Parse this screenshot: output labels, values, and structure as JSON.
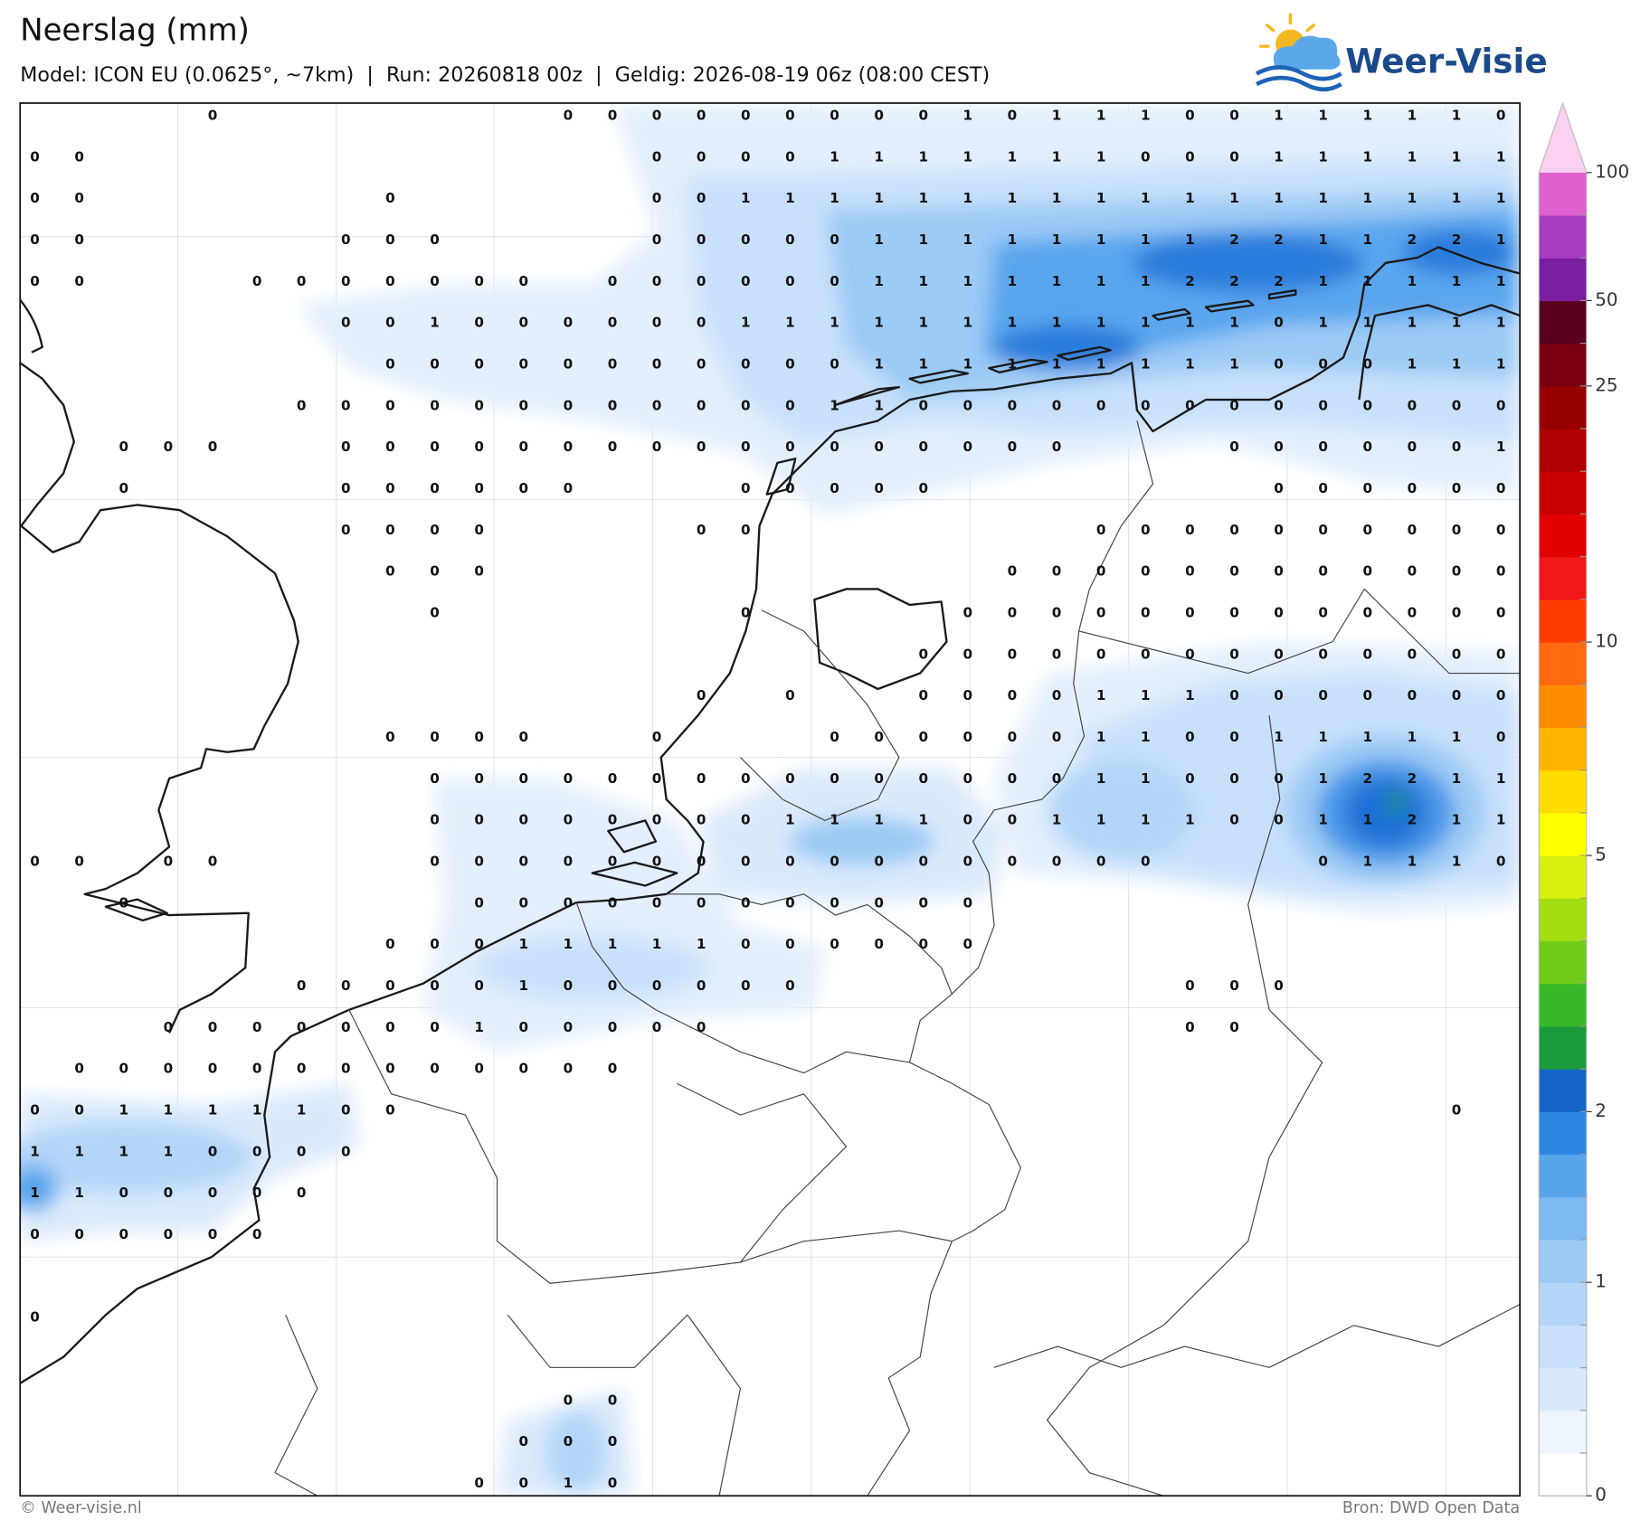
{
  "header": {
    "title": "Neerslag (mm)",
    "subtitle": "Model: ICON EU (0.0625°, ~7km)  |  Run: 20260818 00z  |  Geldig: 2026-08-19 06z (08:00 CEST)"
  },
  "logo": {
    "text": "Weer-Visie"
  },
  "map": {
    "grid": [
      [
        null,
        null,
        null,
        null,
        0,
        null,
        null,
        null,
        null,
        null,
        null,
        null,
        0,
        0,
        0,
        0,
        0,
        0,
        0,
        0,
        0,
        1,
        0,
        1,
        1,
        1,
        0,
        0,
        1,
        1,
        1,
        1,
        1,
        0
      ],
      [
        0,
        0,
        null,
        null,
        null,
        null,
        null,
        null,
        null,
        null,
        null,
        null,
        null,
        null,
        0,
        0,
        0,
        0,
        1,
        1,
        1,
        1,
        1,
        1,
        1,
        0,
        0,
        0,
        1,
        1,
        1,
        1,
        1,
        1
      ],
      [
        0,
        0,
        null,
        null,
        null,
        null,
        null,
        null,
        0,
        null,
        null,
        null,
        null,
        null,
        0,
        0,
        1,
        1,
        1,
        1,
        1,
        1,
        1,
        1,
        1,
        1,
        1,
        1,
        1,
        1,
        1,
        1,
        1,
        1
      ],
      [
        0,
        0,
        null,
        null,
        null,
        null,
        null,
        0,
        0,
        0,
        null,
        null,
        null,
        null,
        0,
        0,
        0,
        0,
        0,
        1,
        1,
        1,
        1,
        1,
        1,
        1,
        1,
        2,
        2,
        1,
        1,
        2,
        2,
        1
      ],
      [
        0,
        0,
        null,
        null,
        null,
        0,
        0,
        0,
        0,
        0,
        0,
        0,
        null,
        0,
        0,
        0,
        0,
        0,
        0,
        1,
        1,
        1,
        1,
        1,
        1,
        1,
        2,
        2,
        2,
        1,
        1,
        1,
        1,
        1
      ],
      [
        null,
        null,
        null,
        null,
        null,
        null,
        null,
        0,
        0,
        1,
        0,
        0,
        0,
        0,
        0,
        0,
        1,
        1,
        1,
        1,
        1,
        1,
        1,
        1,
        1,
        1,
        1,
        1,
        0,
        1,
        1,
        1,
        1,
        1
      ],
      [
        null,
        null,
        null,
        null,
        null,
        null,
        null,
        null,
        0,
        0,
        0,
        0,
        0,
        0,
        0,
        0,
        0,
        0,
        0,
        1,
        1,
        1,
        1,
        1,
        1,
        1,
        1,
        1,
        0,
        0,
        0,
        1,
        1,
        1
      ],
      [
        null,
        null,
        null,
        null,
        null,
        null,
        0,
        0,
        0,
        0,
        0,
        0,
        0,
        0,
        0,
        0,
        0,
        0,
        1,
        1,
        0,
        0,
        0,
        0,
        0,
        0,
        0,
        0,
        0,
        0,
        0,
        0,
        0,
        0
      ],
      [
        null,
        null,
        0,
        0,
        0,
        null,
        null,
        0,
        0,
        0,
        0,
        0,
        0,
        0,
        0,
        0,
        0,
        0,
        0,
        0,
        0,
        0,
        0,
        0,
        null,
        null,
        null,
        0,
        0,
        0,
        0,
        0,
        0,
        1
      ],
      [
        null,
        null,
        0,
        null,
        null,
        null,
        null,
        0,
        0,
        0,
        0,
        0,
        0,
        null,
        null,
        null,
        0,
        0,
        0,
        0,
        0,
        null,
        null,
        null,
        null,
        null,
        null,
        null,
        0,
        0,
        0,
        0,
        0,
        0
      ],
      [
        null,
        null,
        null,
        null,
        null,
        null,
        null,
        0,
        0,
        0,
        0,
        null,
        null,
        null,
        null,
        0,
        0,
        null,
        null,
        null,
        null,
        null,
        null,
        null,
        0,
        0,
        0,
        0,
        0,
        0,
        0,
        0,
        0,
        0
      ],
      [
        null,
        null,
        null,
        null,
        null,
        null,
        null,
        null,
        0,
        0,
        0,
        null,
        null,
        null,
        null,
        null,
        null,
        null,
        null,
        null,
        null,
        null,
        0,
        0,
        0,
        0,
        0,
        0,
        0,
        0,
        0,
        0,
        0,
        0
      ],
      [
        null,
        null,
        null,
        null,
        null,
        null,
        null,
        null,
        null,
        0,
        null,
        null,
        null,
        null,
        null,
        null,
        0,
        null,
        null,
        null,
        null,
        0,
        0,
        0,
        0,
        0,
        0,
        0,
        0,
        0,
        0,
        0,
        0,
        0
      ],
      [
        null,
        null,
        null,
        null,
        null,
        null,
        null,
        null,
        null,
        null,
        null,
        null,
        null,
        null,
        null,
        null,
        null,
        null,
        null,
        null,
        0,
        0,
        0,
        0,
        0,
        0,
        0,
        0,
        0,
        0,
        0,
        0,
        0,
        0
      ],
      [
        null,
        null,
        null,
        null,
        null,
        null,
        null,
        null,
        null,
        null,
        null,
        null,
        null,
        null,
        null,
        0,
        null,
        0,
        null,
        null,
        0,
        0,
        0,
        0,
        1,
        1,
        1,
        0,
        0,
        0,
        0,
        0,
        0,
        0
      ],
      [
        null,
        null,
        null,
        null,
        null,
        null,
        null,
        null,
        0,
        0,
        0,
        0,
        null,
        null,
        0,
        null,
        null,
        null,
        0,
        0,
        0,
        0,
        0,
        0,
        1,
        1,
        0,
        0,
        1,
        1,
        1,
        1,
        1,
        0
      ],
      [
        null,
        null,
        null,
        null,
        null,
        null,
        null,
        null,
        null,
        0,
        0,
        0,
        0,
        0,
        0,
        0,
        0,
        0,
        0,
        0,
        0,
        0,
        0,
        0,
        1,
        1,
        0,
        0,
        0,
        1,
        2,
        2,
        1,
        1
      ],
      [
        null,
        null,
        null,
        null,
        null,
        null,
        null,
        null,
        null,
        0,
        0,
        0,
        0,
        0,
        0,
        0,
        0,
        1,
        1,
        1,
        1,
        0,
        0,
        1,
        1,
        1,
        1,
        0,
        0,
        1,
        1,
        2,
        1,
        1
      ],
      [
        0,
        0,
        null,
        0,
        0,
        null,
        null,
        null,
        null,
        0,
        0,
        0,
        0,
        0,
        0,
        0,
        0,
        0,
        0,
        0,
        0,
        0,
        0,
        0,
        0,
        0,
        null,
        null,
        null,
        0,
        1,
        1,
        1,
        0
      ],
      [
        null,
        null,
        0,
        null,
        null,
        null,
        null,
        null,
        null,
        null,
        0,
        0,
        0,
        0,
        0,
        0,
        0,
        0,
        0,
        0,
        0,
        0,
        null,
        null,
        null,
        null,
        null,
        null,
        null,
        null,
        null,
        null,
        null,
        null
      ],
      [
        null,
        null,
        null,
        null,
        null,
        null,
        null,
        null,
        0,
        0,
        0,
        1,
        1,
        1,
        1,
        1,
        0,
        0,
        0,
        0,
        0,
        0,
        null,
        null,
        null,
        null,
        null,
        null,
        null,
        null,
        null,
        null,
        null,
        null
      ],
      [
        null,
        null,
        null,
        null,
        null,
        null,
        0,
        0,
        0,
        0,
        0,
        1,
        0,
        0,
        0,
        0,
        0,
        0,
        null,
        null,
        null,
        null,
        null,
        null,
        null,
        null,
        0,
        0,
        0,
        null,
        null,
        null,
        null,
        null
      ],
      [
        null,
        null,
        null,
        0,
        0,
        0,
        0,
        0,
        0,
        0,
        1,
        0,
        0,
        0,
        0,
        0,
        null,
        null,
        null,
        null,
        null,
        null,
        null,
        null,
        null,
        null,
        0,
        0,
        null,
        null,
        null,
        null,
        null,
        null
      ],
      [
        null,
        0,
        0,
        0,
        0,
        0,
        0,
        0,
        0,
        0,
        0,
        0,
        0,
        0,
        null,
        null,
        null,
        null,
        null,
        null,
        null,
        null,
        null,
        null,
        null,
        null,
        null,
        null,
        null,
        null,
        null,
        null,
        null,
        null
      ],
      [
        0,
        0,
        1,
        1,
        1,
        1,
        1,
        0,
        0,
        null,
        null,
        null,
        null,
        null,
        null,
        null,
        null,
        null,
        null,
        null,
        null,
        null,
        null,
        null,
        null,
        null,
        null,
        null,
        null,
        null,
        null,
        null,
        0,
        null
      ],
      [
        1,
        1,
        1,
        1,
        0,
        0,
        0,
        0,
        null,
        null,
        null,
        null,
        null,
        null,
        null,
        null,
        null,
        null,
        null,
        null,
        null,
        null,
        null,
        null,
        null,
        null,
        null,
        null,
        null,
        null,
        null,
        null,
        null,
        null
      ],
      [
        1,
        1,
        0,
        0,
        0,
        0,
        0,
        null,
        null,
        null,
        null,
        null,
        null,
        null,
        null,
        null,
        null,
        null,
        null,
        null,
        null,
        null,
        null,
        null,
        null,
        null,
        null,
        null,
        null,
        null,
        null,
        null,
        null,
        null
      ],
      [
        0,
        0,
        0,
        0,
        0,
        0,
        null,
        null,
        null,
        null,
        null,
        null,
        null,
        null,
        null,
        null,
        null,
        null,
        null,
        null,
        null,
        null,
        null,
        null,
        null,
        null,
        null,
        null,
        null,
        null,
        null,
        null,
        null,
        null
      ],
      [
        null,
        null,
        null,
        null,
        null,
        null,
        null,
        null,
        null,
        null,
        null,
        null,
        null,
        null,
        null,
        null,
        null,
        null,
        null,
        null,
        null,
        null,
        null,
        null,
        null,
        null,
        null,
        null,
        null,
        null,
        null,
        null,
        null,
        null
      ],
      [
        0,
        null,
        null,
        null,
        null,
        null,
        null,
        null,
        null,
        null,
        null,
        null,
        null,
        null,
        null,
        null,
        null,
        null,
        null,
        null,
        null,
        null,
        null,
        null,
        null,
        null,
        null,
        null,
        null,
        null,
        null,
        null,
        null,
        null
      ],
      [
        null,
        null,
        null,
        null,
        null,
        null,
        null,
        null,
        null,
        null,
        null,
        null,
        null,
        null,
        null,
        null,
        null,
        null,
        null,
        null,
        null,
        null,
        null,
        null,
        null,
        null,
        null,
        null,
        null,
        null,
        null,
        null,
        null,
        null
      ],
      [
        null,
        null,
        null,
        null,
        null,
        null,
        null,
        null,
        null,
        null,
        null,
        null,
        0,
        0,
        null,
        null,
        null,
        null,
        null,
        null,
        null,
        null,
        null,
        null,
        null,
        null,
        null,
        null,
        null,
        null,
        null,
        null,
        null,
        null
      ],
      [
        null,
        null,
        null,
        null,
        null,
        null,
        null,
        null,
        null,
        null,
        null,
        0,
        0,
        0,
        null,
        null,
        null,
        null,
        null,
        null,
        null,
        null,
        null,
        null,
        null,
        null,
        null,
        null,
        null,
        null,
        null,
        null,
        null,
        null
      ],
      [
        null,
        null,
        null,
        null,
        null,
        null,
        null,
        null,
        null,
        null,
        0,
        0,
        1,
        0,
        null,
        null,
        null,
        null,
        null,
        null,
        null,
        null,
        null,
        null,
        null,
        null,
        null,
        null,
        null,
        null,
        null,
        null,
        null,
        null
      ]
    ],
    "colorbar": {
      "levels": [
        0,
        0.2,
        0.4,
        0.6,
        0.8,
        1,
        1.25,
        1.5,
        1.75,
        2,
        2.5,
        3,
        3.5,
        4,
        4.5,
        5,
        6,
        7,
        8,
        9,
        10,
        12,
        14,
        16,
        18,
        20,
        25,
        35,
        50,
        60,
        80,
        100
      ],
      "colors": [
        "#ffffff",
        "#eef5fd",
        "#dbeafb",
        "#c8e0fa",
        "#b3d6f8",
        "#9ccbf6",
        "#7dbaf2",
        "#58a5ec",
        "#2f86e2",
        "#1565c8",
        "#1a9a3a",
        "#38b828",
        "#6fcc18",
        "#a3dc10",
        "#d6ef10",
        "#ffff00",
        "#ffdc00",
        "#ffb400",
        "#ff8c00",
        "#ff6a10",
        "#ff3c00",
        "#f01818",
        "#e00000",
        "#c80000",
        "#b00000",
        "#960000",
        "#7a0010",
        "#5a0020",
        "#7a1ea0",
        "#a83cc0",
        "#e060d0"
      ],
      "extend_color": "#fcd0f0",
      "ticks": [
        0,
        1,
        2,
        5,
        10,
        25,
        50,
        100
      ]
    }
  },
  "footer": {
    "left": "© Weer-visie.nl",
    "right": "Bron: DWD Open Data"
  }
}
